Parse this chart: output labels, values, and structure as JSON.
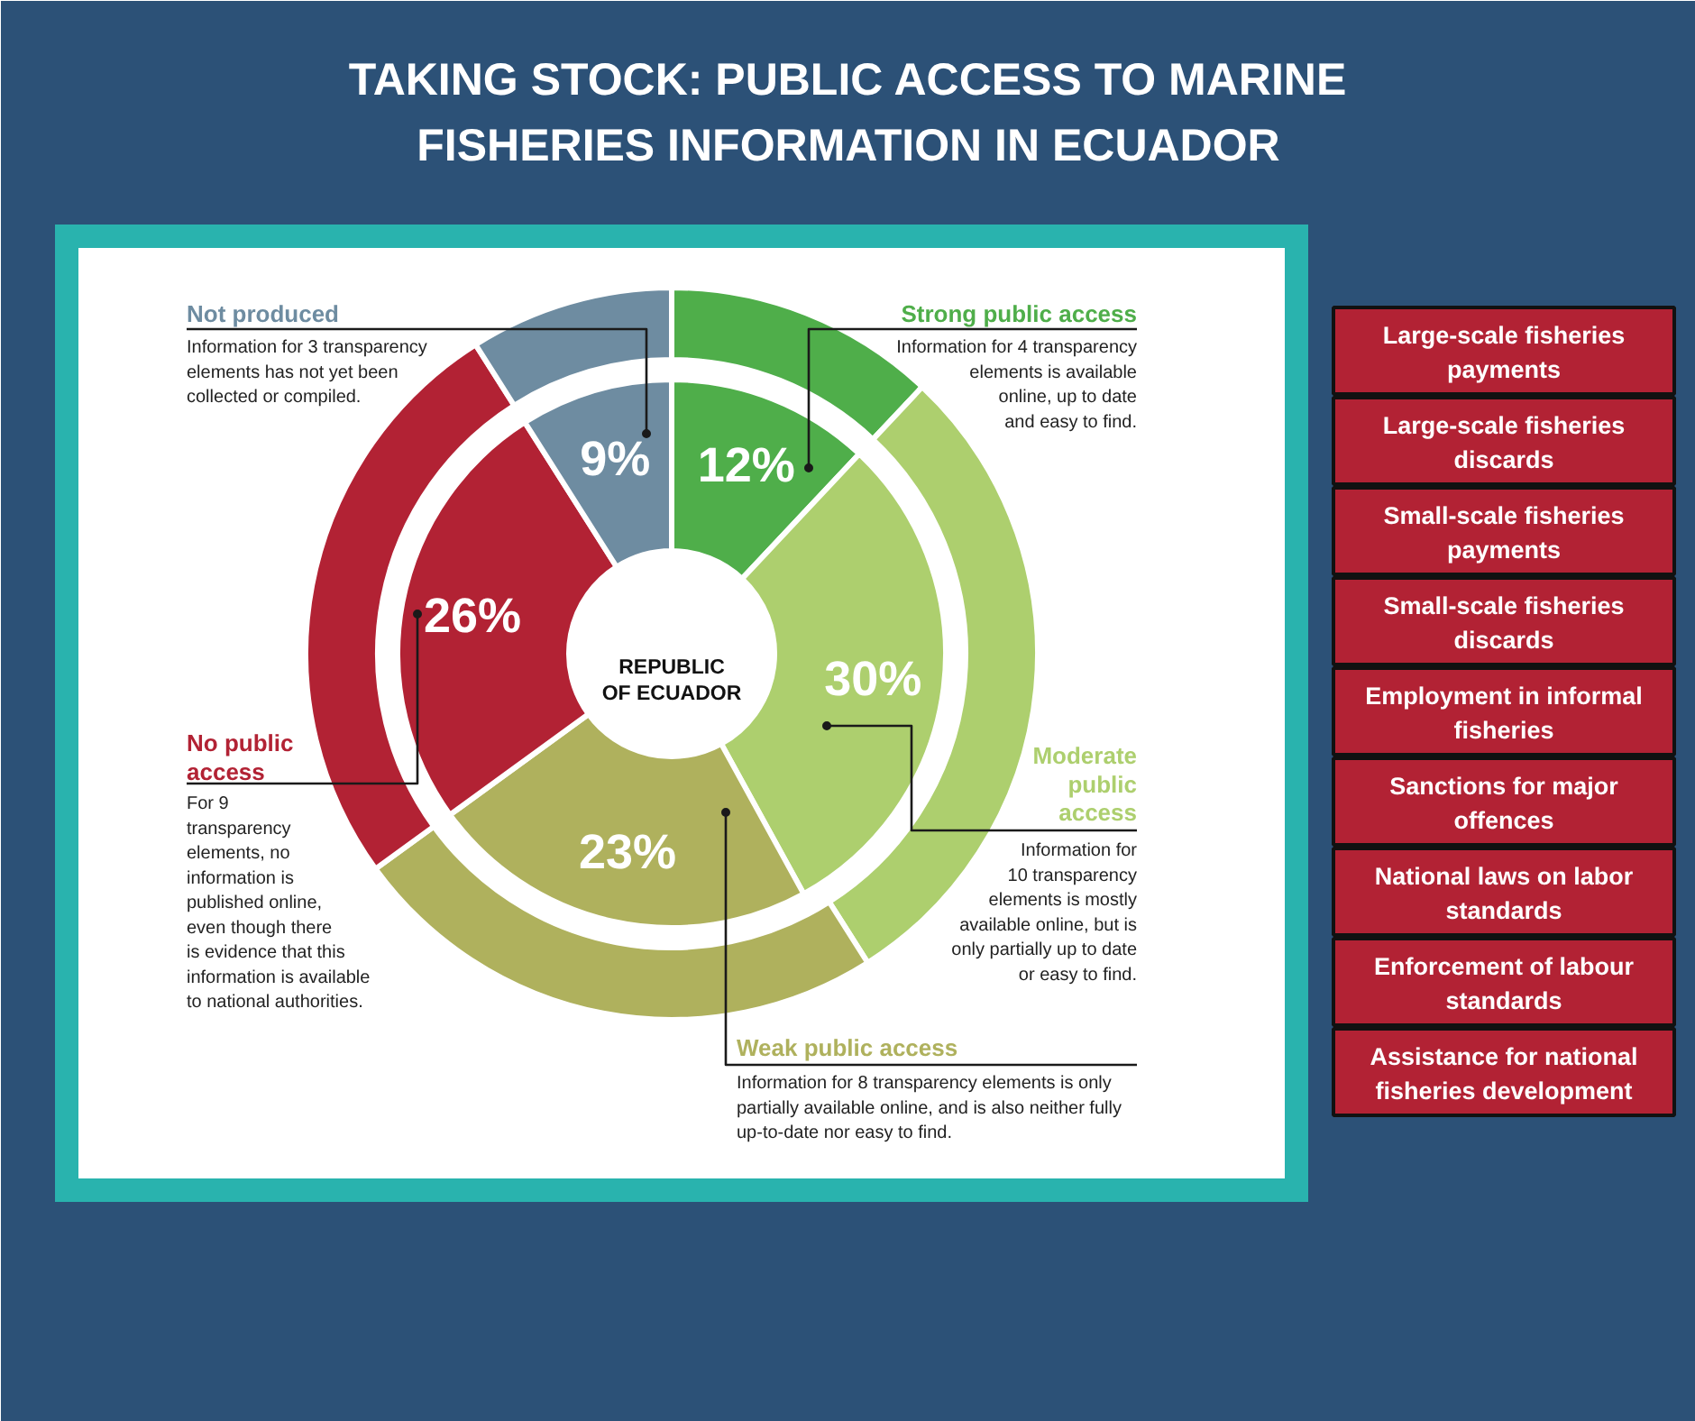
{
  "chart_data": {
    "type": "donut",
    "title": "TAKING STOCK: PUBLIC ACCESS TO MARINE\nFISHERIES INFORMATION IN ECUADOR",
    "categories": [
      "Strong public access",
      "Moderate\npublic\naccess",
      "Weak public access",
      "No public\naccess",
      "Not produced"
    ],
    "colors": [
      "#4fae4a",
      "#adcf6e",
      "#afb15d",
      "#b22234",
      "#6e8ca1"
    ],
    "series": [
      {
        "values": [
          12,
          30,
          23,
          26,
          9
        ],
        "value_labels": [
          "12%",
          "30%",
          "23%",
          "26%",
          "9%"
        ]
      },
      {
        "values": [
          12,
          29,
          24,
          26,
          9
        ]
      }
    ],
    "annotations": [
      "REPUBLIC\nOF ECUADOR",
      "Information for 4 transparency\nelements is available\nonline, up to date\nand easy to find.",
      "Information for\n10 transparency\nelements is mostly\navailable online, but is\nonly partially up to date\nor easy to find.",
      "Information for 8 transparency elements is only\npartially available online, and is also neither fully\nup-to-date nor easy to find.",
      "For 9\ntransparency\nelements, no\ninformation is\npublished online,\neven though there\nis evidence that this\ninformation is available\nto national authorities.",
      "Information for 3 transparency\nelements has not yet been\ncollected or compiled.",
      "Large-scale fisheries\npayments",
      "Large-scale fisheries\ndiscards",
      "Small-scale fisheries\npayments",
      "Small-scale fisheries\ndiscards",
      "Employment in informal\nfisheries",
      "Sanctions for major\noffences",
      "National laws on labor\nstandards",
      "Enforcement of labour\nstandards",
      "Assistance for national\nfisheries development"
    ]
  }
}
